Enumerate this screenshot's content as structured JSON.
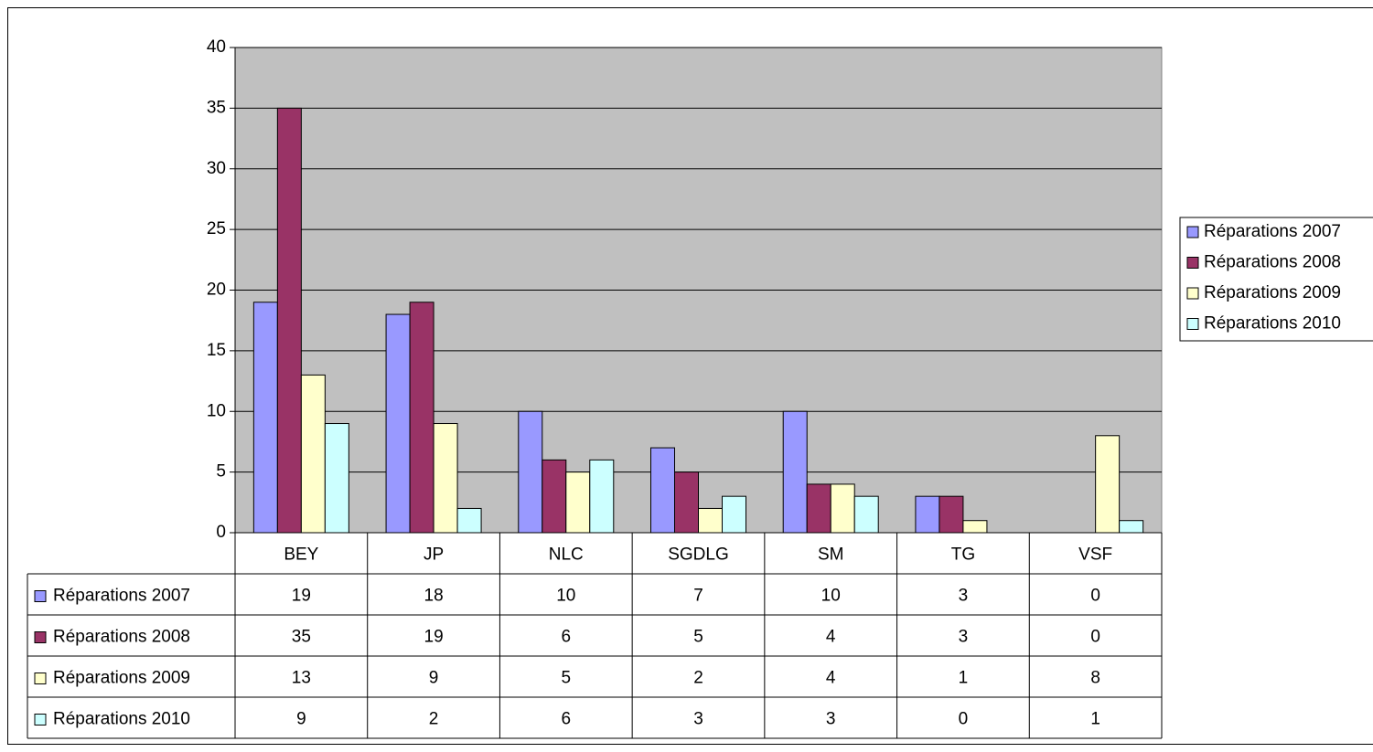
{
  "chart_data": {
    "type": "bar",
    "categories": [
      "BEY",
      "JP",
      "NLC",
      "SGDLG",
      "SM",
      "TG",
      "VSF"
    ],
    "series": [
      {
        "name": "Réparations 2007",
        "color": "#9999ff",
        "values": [
          19,
          18,
          10,
          7,
          10,
          3,
          0
        ]
      },
      {
        "name": "Réparations 2008",
        "color": "#993366",
        "values": [
          35,
          19,
          6,
          5,
          4,
          3,
          0
        ]
      },
      {
        "name": "Réparations 2009",
        "color": "#ffffcc",
        "values": [
          13,
          9,
          5,
          2,
          4,
          1,
          8
        ]
      },
      {
        "name": "Réparations 2010",
        "color": "#ccffff",
        "values": [
          9,
          2,
          6,
          3,
          3,
          0,
          1
        ]
      }
    ],
    "ylim": [
      0,
      40
    ],
    "yticks": [
      0,
      5,
      10,
      15,
      20,
      25,
      30,
      35,
      40
    ],
    "grid": true,
    "plot_background": "#c0c0c0",
    "legend": "right",
    "data_table": true
  }
}
